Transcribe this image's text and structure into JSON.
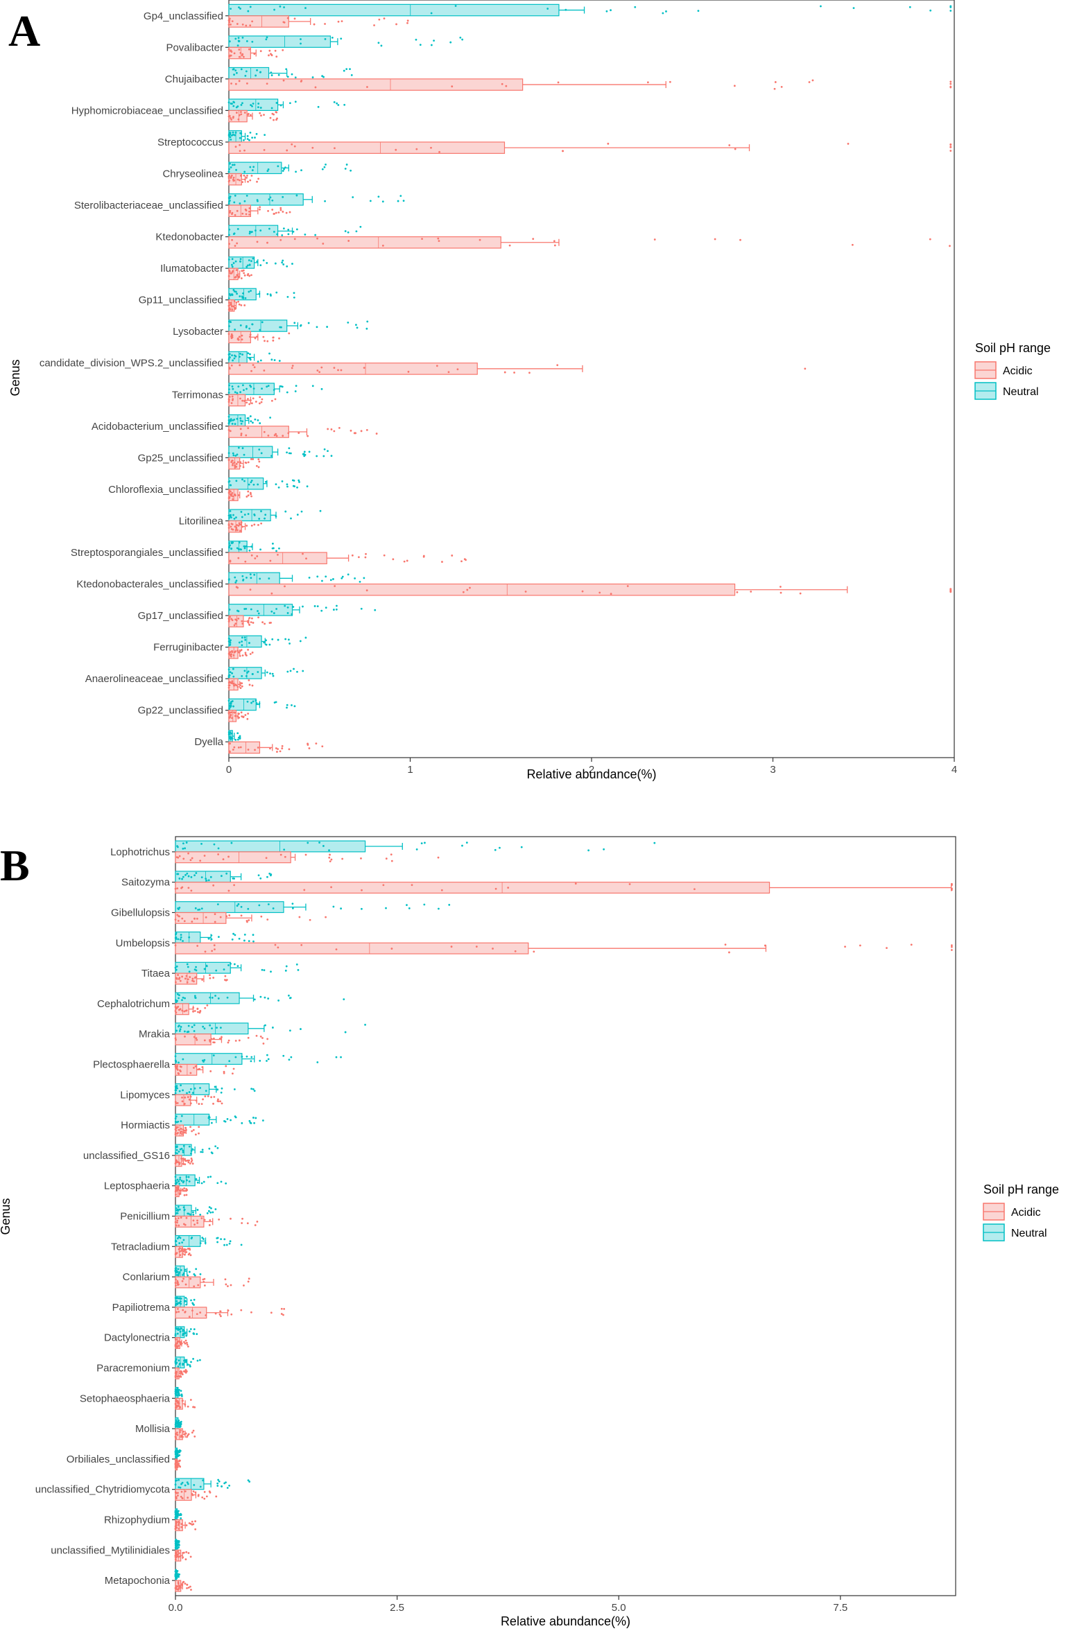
{
  "colors": {
    "acidic": "#F8766D",
    "acidic_fill": "#FBD5D3",
    "neutral": "#00BFC4",
    "neutral_fill": "#B3ECEE"
  },
  "chart_data": [
    {
      "panel": "A",
      "type": "bar",
      "xlabel": "Relative abundance(%)",
      "ylabel": "Genus",
      "xlim": [
        0,
        4
      ],
      "xticks": [
        "0",
        "1",
        "2",
        "3",
        "4"
      ],
      "legend": {
        "title": "Soil pH range",
        "entries": [
          "Acidic",
          "Neutral"
        ],
        "placement": "right"
      },
      "categories": [
        "Gp4_unclassified",
        "Povalibacter",
        "Chujaibacter",
        "Hyphomicrobiaceae_unclassified",
        "Streptococcus",
        "Chryseolinea",
        "Sterolibacteriaceae_unclassified",
        "Ktedonobacter",
        "Ilumatobacter",
        "Gp11_unclassified",
        "Lysobacter",
        "candidate_division_WPS.2_unclassified",
        "Terrimonas",
        "Acidobacterium_unclassified",
        "Gp25_unclassified",
        "Chloroflexia_unclassified",
        "Litorilinea",
        "Streptosporangiales_unclassified",
        "Ktedonobacterales_unclassified",
        "Gp17_unclassified",
        "Ferruginibacter",
        "Anaerolineaceae_unclassified",
        "Gp22_unclassified",
        "Dyella"
      ],
      "series": [
        {
          "name": "Neutral",
          "values": [
            1.82,
            0.56,
            0.22,
            0.27,
            0.07,
            0.29,
            0.41,
            0.27,
            0.14,
            0.15,
            0.32,
            0.1,
            0.25,
            0.09,
            0.24,
            0.19,
            0.23,
            0.1,
            0.28,
            0.35,
            0.18,
            0.18,
            0.15,
            0.02
          ],
          "err": [
            0.14,
            0.04,
            0.1,
            0.03,
            0.02,
            0.04,
            0.05,
            0.08,
            0.02,
            0.02,
            0.06,
            0.04,
            0.03,
            0.02,
            0.03,
            0.02,
            0.03,
            0.03,
            0.07,
            0.04,
            0.02,
            0.02,
            0.02,
            0.01
          ]
        },
        {
          "name": "Acidic",
          "values": [
            0.33,
            0.12,
            1.62,
            0.1,
            1.52,
            0.07,
            0.12,
            1.5,
            0.05,
            0.03,
            0.12,
            1.37,
            0.09,
            0.33,
            0.06,
            0.05,
            0.07,
            0.54,
            2.79,
            0.08,
            0.05,
            0.05,
            0.04,
            0.17
          ],
          "err": [
            0.12,
            0.03,
            0.79,
            0.03,
            1.35,
            0.02,
            0.04,
            0.32,
            0.01,
            0.01,
            0.04,
            0.58,
            0.03,
            0.1,
            0.02,
            0.01,
            0.02,
            0.12,
            0.62,
            0.03,
            0.01,
            0.01,
            0.01,
            0.07
          ]
        }
      ]
    },
    {
      "panel": "B",
      "type": "bar",
      "xlabel": "Relative abundance(%)",
      "ylabel": "Genus",
      "xlim": [
        0,
        8.8
      ],
      "xticks": [
        "0.0",
        "2.5",
        "5.0",
        "7.5"
      ],
      "legend": {
        "title": "Soil pH range",
        "entries": [
          "Acidic",
          "Neutral"
        ],
        "placement": "right"
      },
      "categories": [
        "Lophotrichus",
        "Saitozyma",
        "Gibellulopsis",
        "Umbelopsis",
        "Titaea",
        "Cephalotrichum",
        "Mrakia",
        "Plectosphaerella",
        "Lipomyces",
        "Hormiactis",
        "unclassified_GS16",
        "Leptosphaeria",
        "Penicillium",
        "Tetracladium",
        "Conlarium",
        "Papiliotrema",
        "Dactylonectria",
        "Paracremonium",
        "Setophaeosphaeria",
        "Mollisia",
        "Orbiliales_unclassified",
        "unclassified_Chytridiomycota",
        "Rhizophydium",
        "unclassified_Mytilinidiales",
        "Metapochonia"
      ],
      "series": [
        {
          "name": "Neutral",
          "values": [
            2.14,
            0.62,
            1.22,
            0.28,
            0.62,
            0.72,
            0.82,
            0.75,
            0.38,
            0.38,
            0.18,
            0.22,
            0.18,
            0.28,
            0.1,
            0.1,
            0.1,
            0.1,
            0.03,
            0.03,
            0.02,
            0.32,
            0.02,
            0.01,
            0.01
          ],
          "err": [
            0.42,
            0.12,
            0.25,
            0.12,
            0.12,
            0.16,
            0.18,
            0.14,
            0.08,
            0.08,
            0.04,
            0.05,
            0.05,
            0.06,
            0.03,
            0.03,
            0.03,
            0.03,
            0.01,
            0.01,
            0.01,
            0.08,
            0.01,
            0.01,
            0.01
          ]
        },
        {
          "name": "Acidic",
          "values": [
            1.3,
            6.7,
            0.57,
            3.98,
            0.24,
            0.15,
            0.4,
            0.24,
            0.17,
            0.09,
            0.07,
            0.04,
            0.32,
            0.08,
            0.28,
            0.35,
            0.05,
            0.04,
            0.08,
            0.08,
            0.02,
            0.18,
            0.08,
            0.06,
            0.06
          ],
          "err": [
            0.05,
            2.05,
            0.29,
            2.68,
            0.08,
            0.05,
            0.12,
            0.07,
            0.07,
            0.03,
            0.02,
            0.02,
            0.1,
            0.03,
            0.15,
            0.24,
            0.02,
            0.02,
            0.03,
            0.03,
            0.01,
            0.05,
            0.03,
            0.02,
            0.02
          ]
        }
      ]
    }
  ]
}
